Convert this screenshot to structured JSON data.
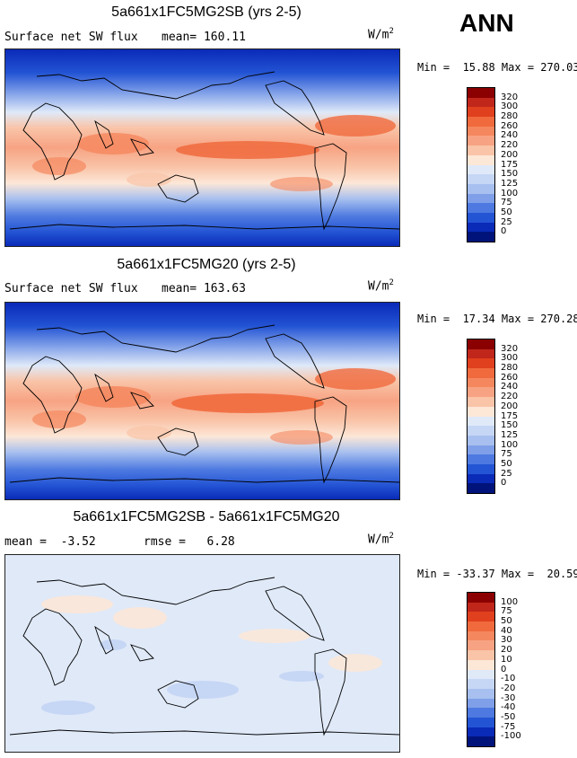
{
  "season": "ANN",
  "units_base": "W/m",
  "units_exp": "2",
  "panels": [
    {
      "title": "5a661x1FC5MG2SB (yrs 2-5)",
      "left_label": "Surface net SW flux",
      "stat_label": "mean=",
      "stat_value": "160.11",
      "minmax": "Min =  15.88 Max = 270.03",
      "levels": [
        "320",
        "300",
        "280",
        "260",
        "240",
        "220",
        "200",
        "175",
        "150",
        "125",
        "100",
        "75",
        "50",
        "25",
        "0"
      ],
      "colors": [
        "#8b0000",
        "#c0261a",
        "#e0401d",
        "#f06a3d",
        "#f5875e",
        "#f7a383",
        "#f9c4a8",
        "#fde7d7",
        "#dfe9f8",
        "#c6d6f5",
        "#a8c0ef",
        "#7f9fe8",
        "#4d79e0",
        "#2354d4",
        "#0a2ab8",
        "#00137a"
      ]
    },
    {
      "title": "5a661x1FC5MG20 (yrs 2-5)",
      "left_label": "Surface net SW flux",
      "stat_label": "mean=",
      "stat_value": "163.63",
      "minmax": "Min =  17.34 Max = 270.28",
      "levels": [
        "320",
        "300",
        "280",
        "260",
        "240",
        "220",
        "200",
        "175",
        "150",
        "125",
        "100",
        "75",
        "50",
        "25",
        "0"
      ],
      "colors": [
        "#8b0000",
        "#c0261a",
        "#e0401d",
        "#f06a3d",
        "#f5875e",
        "#f7a383",
        "#f9c4a8",
        "#fde7d7",
        "#dfe9f8",
        "#c6d6f5",
        "#a8c0ef",
        "#7f9fe8",
        "#4d79e0",
        "#2354d4",
        "#0a2ab8",
        "#00137a"
      ]
    },
    {
      "title": "5a661x1FC5MG2SB - 5a661x1FC5MG20",
      "left_label": "mean =  -3.52",
      "stat_label": "rmse =",
      "stat_value": "6.28",
      "minmax": "Min = -33.37 Max =  20.59",
      "levels": [
        "100",
        "75",
        "50",
        "40",
        "30",
        "20",
        "10",
        "0",
        "-10",
        "-20",
        "-30",
        "-40",
        "-50",
        "-75",
        "-100"
      ],
      "colors": [
        "#8b0000",
        "#c0261a",
        "#e0401d",
        "#f06a3d",
        "#f5875e",
        "#f7a383",
        "#f9c4a8",
        "#fde7d7",
        "#dfe9f8",
        "#c6d6f5",
        "#a8c0ef",
        "#7f9fe8",
        "#4d79e0",
        "#2354d4",
        "#0a2ab8",
        "#00137a"
      ]
    }
  ]
}
